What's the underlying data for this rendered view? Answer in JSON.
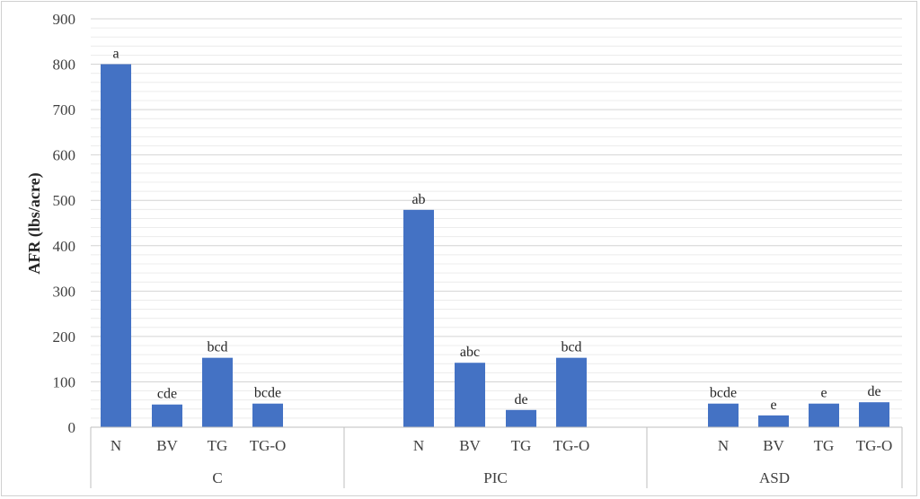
{
  "chart_data": {
    "type": "bar",
    "title": "",
    "xlabel": "",
    "ylabel": "AFR (lbs/acre)",
    "ylim": [
      0,
      900
    ],
    "yticks": [
      0,
      100,
      200,
      300,
      400,
      500,
      600,
      700,
      800,
      900
    ],
    "minor_gridlines_step": 20,
    "grid": true,
    "legend": "none",
    "bar_color": "#4472C4",
    "groups": [
      {
        "name": "C",
        "categories": [
          "N",
          "BV",
          "TG",
          "TG-O"
        ],
        "values": [
          800,
          50,
          153,
          52
        ],
        "labels": [
          "a",
          "cde",
          "bcd",
          "bcde"
        ]
      },
      {
        "name": "PIC",
        "categories": [
          "N",
          "BV",
          "TG",
          "TG-O"
        ],
        "values": [
          479,
          142,
          38,
          153
        ],
        "labels": [
          "ab",
          "abc",
          "de",
          "bcd"
        ]
      },
      {
        "name": "ASD",
        "categories": [
          "N",
          "BV",
          "TG",
          "TG-O"
        ],
        "values": [
          52,
          26,
          52,
          55
        ],
        "labels": [
          "bcde",
          "e",
          "e",
          "de"
        ]
      }
    ]
  }
}
